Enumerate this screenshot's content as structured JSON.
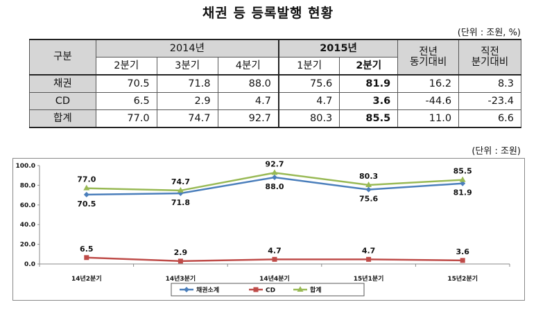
{
  "title": "채권 등 등록발행 현황",
  "table": {
    "unit": "(단위 : 조원, %)",
    "header": {
      "category": "구분",
      "year2014": "2014년",
      "year2015": "2015년",
      "yoy": [
        "전년",
        "동기대비"
      ],
      "qoq": [
        "직전",
        "분기대비"
      ],
      "quarters": [
        "2분기",
        "3분기",
        "4분기",
        "1분기",
        "2분기"
      ]
    },
    "rows": [
      {
        "label": "채권",
        "values": [
          "70.5",
          "71.8",
          "88.0",
          "75.6",
          "81.9",
          "16.2",
          "8.3"
        ]
      },
      {
        "label": "CD",
        "values": [
          "6.5",
          "2.9",
          "4.7",
          "4.7",
          "3.6",
          "-44.6",
          "-23.4"
        ]
      },
      {
        "label": "합계",
        "values": [
          "77.0",
          "74.7",
          "92.7",
          "80.3",
          "85.5",
          "11.0",
          "6.6"
        ]
      }
    ]
  },
  "chart_data": {
    "type": "line",
    "unit": "(단위 : 조원)",
    "categories": [
      "14년2분기",
      "14년3분기",
      "14년4분기",
      "15년1분기",
      "15년2분기"
    ],
    "series": [
      {
        "name": "채권소계",
        "values": [
          70.5,
          71.8,
          88.0,
          75.6,
          81.9
        ],
        "color": "#4a7ebb",
        "marker": "diamond"
      },
      {
        "name": "CD",
        "values": [
          6.5,
          2.9,
          4.7,
          4.7,
          3.6
        ],
        "color": "#be4b48",
        "marker": "square"
      },
      {
        "name": "합계",
        "values": [
          77.0,
          74.7,
          92.7,
          80.3,
          85.5
        ],
        "color": "#98b954",
        "marker": "triangle"
      }
    ],
    "ylim": [
      0,
      100
    ],
    "yticks": [
      "0.0",
      "20.0",
      "40.0",
      "60.0",
      "80.0",
      "100.0"
    ],
    "legend": "bottom"
  }
}
